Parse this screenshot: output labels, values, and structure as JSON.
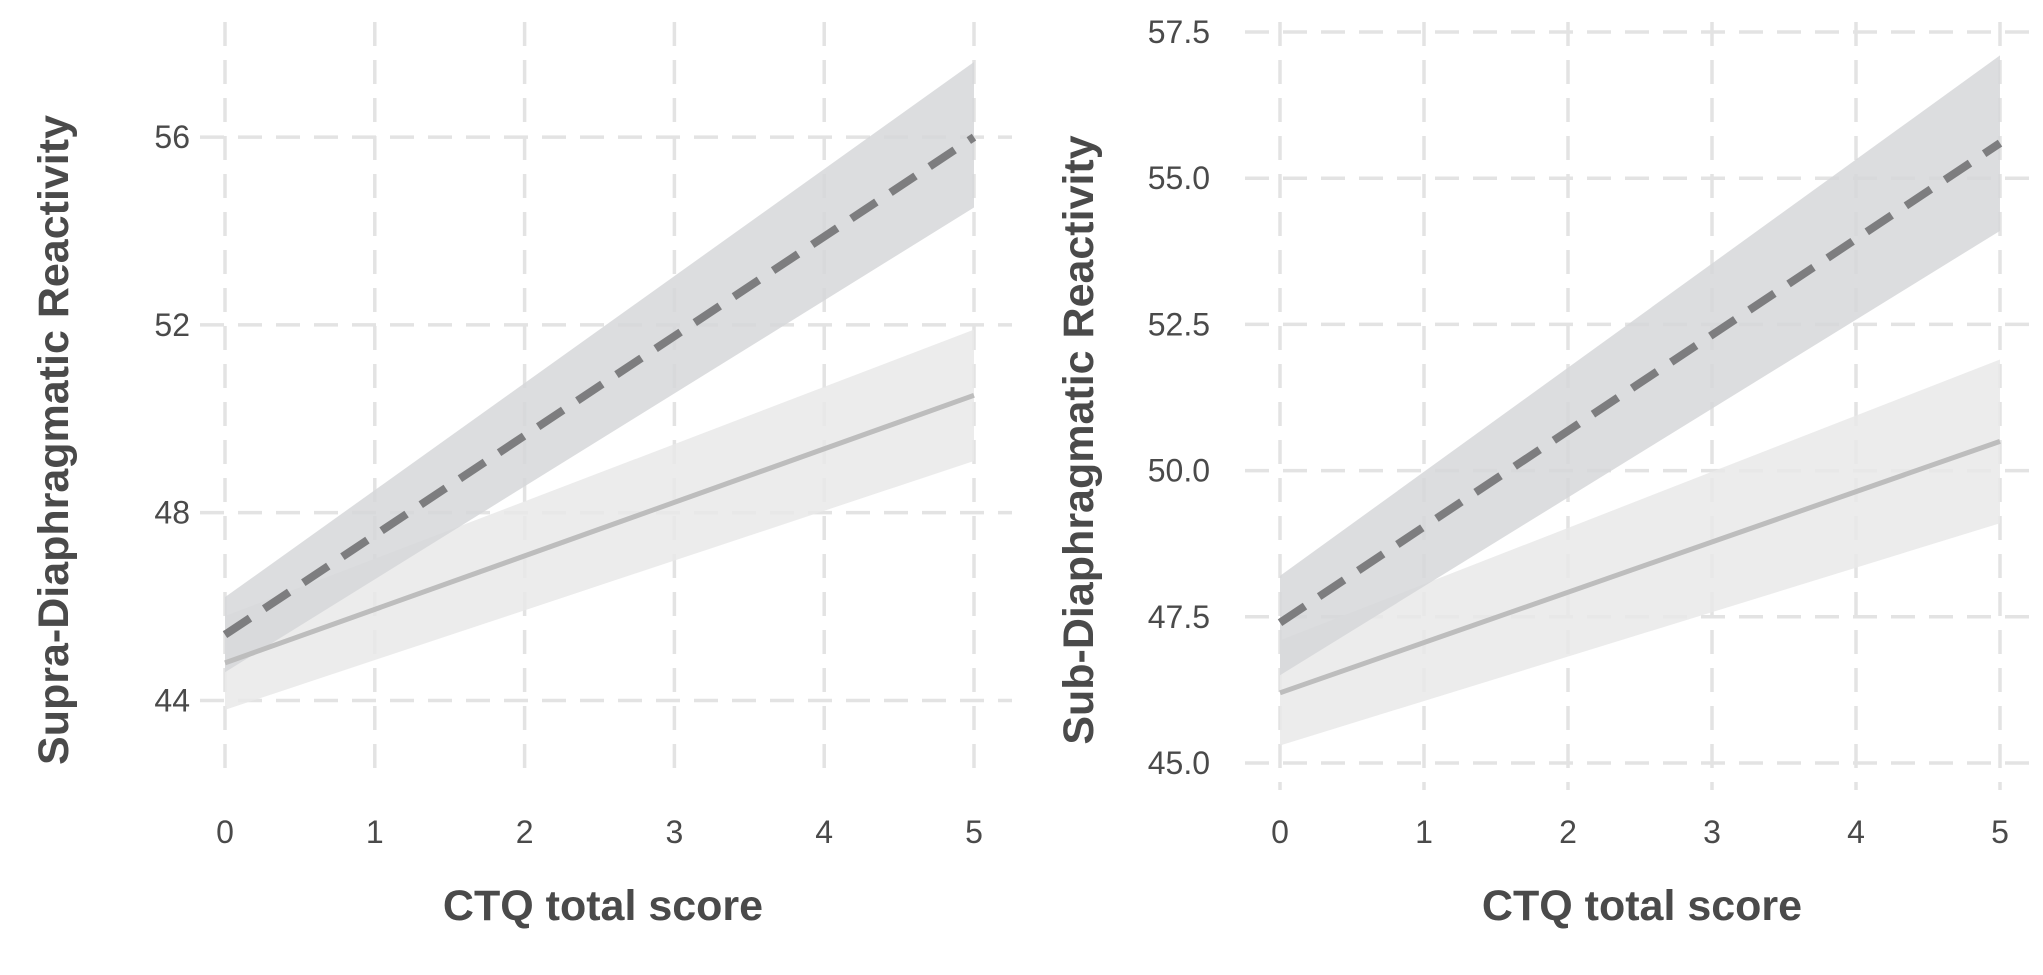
{
  "chart_data": [
    {
      "type": "line",
      "title": "",
      "xlabel": "CTQ total score",
      "ylabel": "Supra-Diaphragmatic Reactivity",
      "xlim": [
        0,
        5
      ],
      "ylim": [
        43.2,
        57.6
      ],
      "x_ticks": [
        0,
        1,
        2,
        3,
        4,
        5
      ],
      "x_tick_labels": [
        "0",
        "1",
        "2",
        "3",
        "4",
        "5"
      ],
      "y_ticks": [
        44,
        48,
        52,
        56
      ],
      "y_tick_labels": [
        "44",
        "48",
        "52",
        "56"
      ],
      "grid": true,
      "legend": "none",
      "series": [
        {
          "style": "dashed",
          "color": "#7d7d7f",
          "band_color": "#d6d7d9",
          "x": [
            0,
            5
          ],
          "y": [
            45.4,
            56.0
          ],
          "ci_lower": [
            44.6,
            54.5
          ],
          "ci_upper": [
            46.2,
            57.6
          ]
        },
        {
          "style": "solid",
          "color": "#bdbdbd",
          "band_color": "#e9e9e9",
          "x": [
            0,
            5
          ],
          "y": [
            44.8,
            50.5
          ],
          "ci_lower": [
            43.8,
            49.1
          ],
          "ci_upper": [
            45.8,
            51.9
          ]
        }
      ]
    },
    {
      "type": "line",
      "title": "",
      "xlabel": "CTQ total score",
      "ylabel": "Sub-Diaphragmatic Reactivity",
      "xlim": [
        0,
        5
      ],
      "ylim": [
        45.0,
        57.5
      ],
      "x_ticks": [
        0,
        1,
        2,
        3,
        4,
        5
      ],
      "x_tick_labels": [
        "0",
        "1",
        "2",
        "3",
        "4",
        "5"
      ],
      "y_ticks": [
        45.0,
        47.5,
        50.0,
        52.5,
        55.0,
        57.5
      ],
      "y_tick_labels": [
        "45.0",
        "47.5",
        "50.0",
        "52.5",
        "55.0",
        "57.5"
      ],
      "grid": true,
      "legend": "none",
      "series": [
        {
          "style": "dashed",
          "color": "#7d7d7f",
          "band_color": "#d6d7d9",
          "x": [
            0,
            5
          ],
          "y": [
            47.4,
            55.6
          ],
          "ci_lower": [
            46.5,
            54.1
          ],
          "ci_upper": [
            48.2,
            57.1
          ]
        },
        {
          "style": "solid",
          "color": "#bdbdbd",
          "band_color": "#e9e9e9",
          "x": [
            0,
            5
          ],
          "y": [
            46.2,
            50.5
          ],
          "ci_lower": [
            45.3,
            49.1
          ],
          "ci_upper": [
            47.1,
            51.9
          ]
        }
      ]
    }
  ]
}
